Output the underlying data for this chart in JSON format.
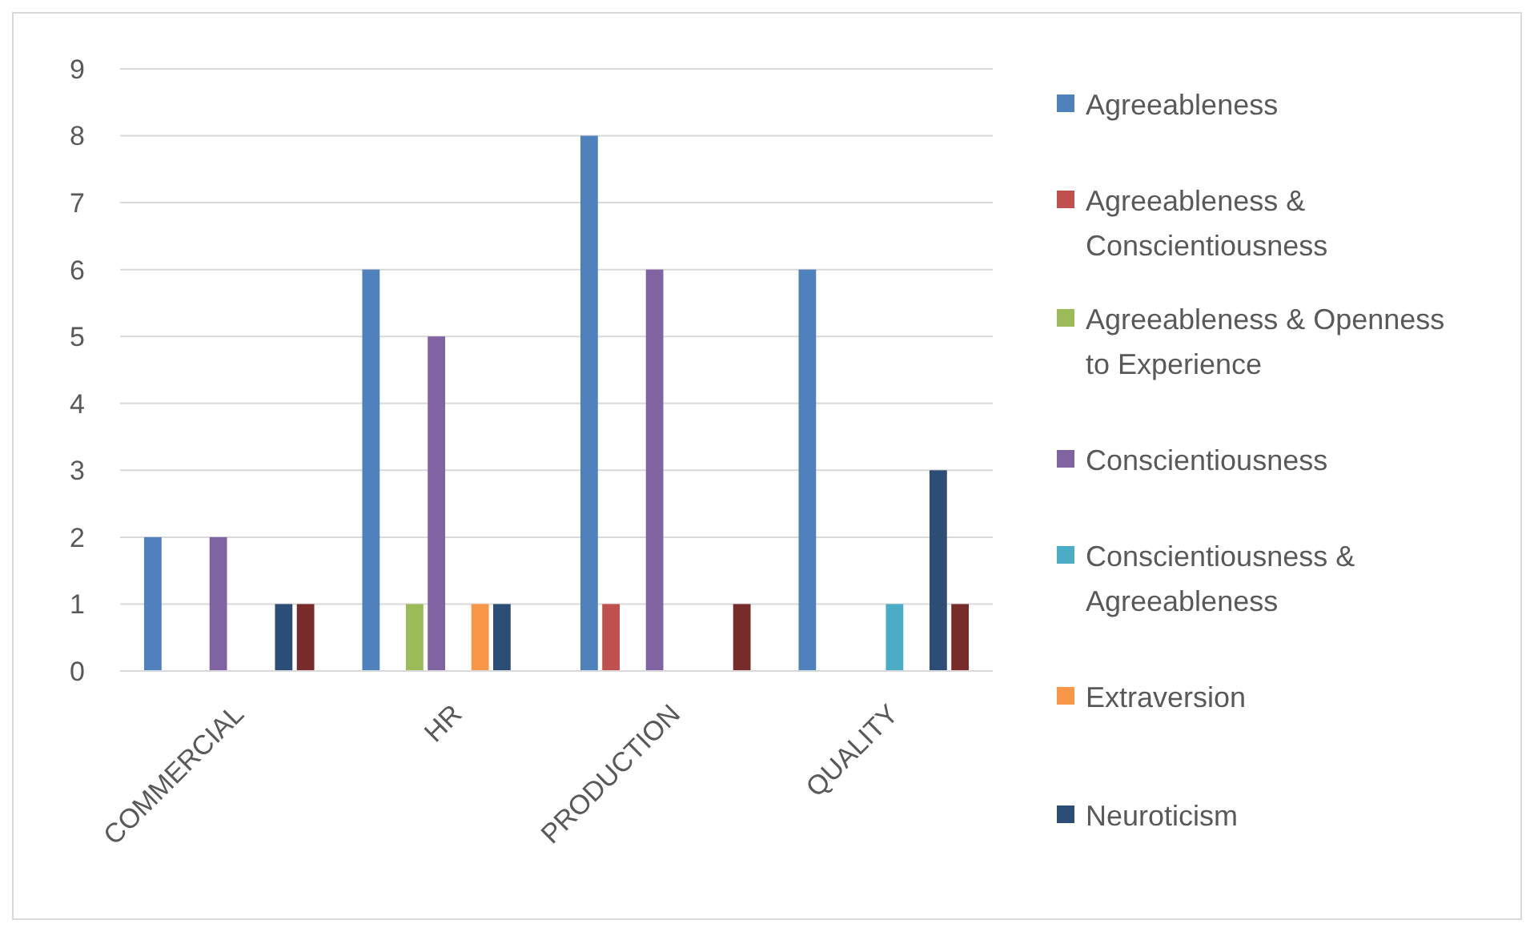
{
  "chart_data": {
    "type": "bar",
    "categories": [
      "COMMERCIAL",
      "HR",
      "PRODUCTION",
      "QUALITY"
    ],
    "series": [
      {
        "name": "Agreeableness",
        "color": "#4f81bd",
        "values": [
          2,
          6,
          8,
          6
        ]
      },
      {
        "name": "Agreeableness & Conscientiousness",
        "color": "#c0504d",
        "values": [
          0,
          0,
          1,
          0
        ]
      },
      {
        "name": "Agreeableness & Openness to Experience",
        "color": "#9bbb59",
        "values": [
          0,
          1,
          0,
          0
        ]
      },
      {
        "name": "Conscientiousness",
        "color": "#8064a2",
        "values": [
          2,
          5,
          6,
          0
        ]
      },
      {
        "name": "Conscientiousness & Agreeableness",
        "color": "#4bacc6",
        "values": [
          0,
          0,
          0,
          1
        ]
      },
      {
        "name": "Extraversion",
        "color": "#f79646",
        "values": [
          0,
          1,
          0,
          0
        ]
      },
      {
        "name": "Neuroticism",
        "color": "#2c4d75",
        "values": [
          1,
          1,
          0,
          3
        ]
      },
      {
        "color": "#772c2a",
        "values": [
          1,
          0,
          1,
          1
        ]
      }
    ],
    "ylim": [
      0,
      9
    ],
    "yticks": [
      0,
      1,
      2,
      3,
      4,
      5,
      6,
      7,
      8,
      9
    ],
    "grid": "y",
    "legend": "right"
  }
}
